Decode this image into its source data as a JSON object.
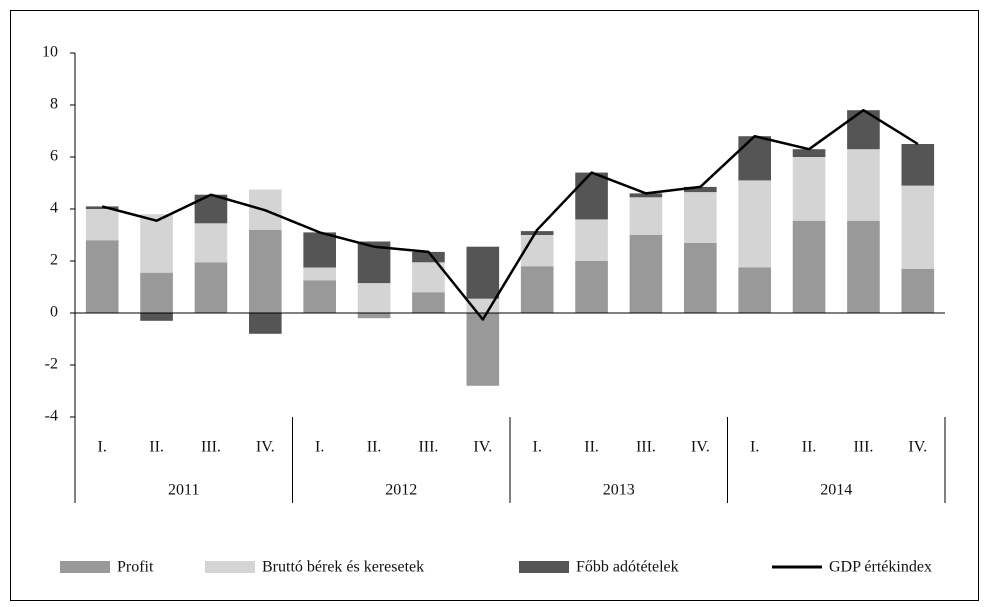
{
  "chart_data": {
    "type": "bar",
    "stacked": true,
    "categories": [
      "I.",
      "II.",
      "III.",
      "IV.",
      "I.",
      "II.",
      "III.",
      "IV.",
      "I.",
      "II.",
      "III.",
      "IV.",
      "I.",
      "II.",
      "III.",
      "IV."
    ],
    "groups": [
      "2011",
      "2012",
      "2013",
      "2014"
    ],
    "series": [
      {
        "name": "Profit",
        "color": "#999999",
        "values": [
          2.8,
          1.55,
          1.95,
          3.2,
          1.25,
          -0.2,
          0.8,
          -2.8,
          1.8,
          2.0,
          3.0,
          2.7,
          1.75,
          3.55,
          3.55,
          1.7
        ]
      },
      {
        "name": "Bruttó bérek és keresetek",
        "color": "#d4d4d4",
        "values": [
          1.2,
          2.25,
          1.5,
          1.55,
          0.5,
          1.15,
          1.15,
          0.55,
          1.2,
          1.6,
          1.45,
          1.95,
          3.35,
          2.45,
          2.75,
          3.2
        ]
      },
      {
        "name": "Főbb adótételek",
        "color": "#555555",
        "values": [
          0.1,
          -0.3,
          1.1,
          -0.8,
          1.35,
          1.6,
          0.4,
          2.0,
          0.15,
          1.8,
          0.15,
          0.2,
          1.7,
          0.3,
          1.5,
          1.6
        ]
      },
      {
        "name": "GDP értékindex",
        "color": "#000000",
        "type": "line",
        "values": [
          4.1,
          3.55,
          4.55,
          3.95,
          3.1,
          2.55,
          2.35,
          -0.25,
          3.2,
          5.4,
          4.6,
          4.85,
          6.8,
          6.3,
          7.8,
          6.5
        ]
      }
    ],
    "ylim": [
      -4,
      10
    ],
    "yticks": [
      -4,
      -2,
      0,
      2,
      4,
      6,
      8,
      10
    ],
    "grid": false,
    "legend": "bottom"
  }
}
